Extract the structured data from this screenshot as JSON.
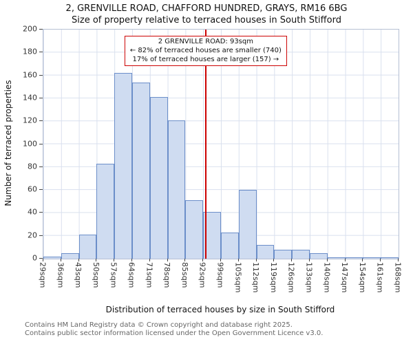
{
  "chart_data": {
    "type": "bar",
    "title": "2, GRENVILLE ROAD, CHAFFORD HUNDRED, GRAYS, RM16 6BG",
    "subtitle": "Size of property relative to terraced houses in South Stifford",
    "xlabel": "Distribution of terraced houses by size in South Stifford",
    "ylabel": "Number of terraced properties",
    "categories": [
      "29sqm",
      "36sqm",
      "43sqm",
      "50sqm",
      "57sqm",
      "64sqm",
      "71sqm",
      "78sqm",
      "85sqm",
      "92sqm",
      "99sqm",
      "105sqm",
      "112sqm",
      "119sqm",
      "126sqm",
      "133sqm",
      "140sqm",
      "147sqm",
      "154sqm",
      "161sqm",
      "168sqm"
    ],
    "values": [
      2,
      5,
      21,
      83,
      162,
      154,
      141,
      121,
      51,
      41,
      23,
      60,
      12,
      8,
      8,
      5,
      1,
      1,
      1,
      1
    ],
    "ylim": [
      0,
      200
    ],
    "yticks": [
      0,
      20,
      40,
      60,
      80,
      100,
      120,
      140,
      160,
      180,
      200
    ],
    "grid": "on",
    "bar_fill": "#cfdcf1",
    "bar_border": "#6b8ec9",
    "marker": {
      "value": 93,
      "label": "93sqm",
      "color": "#cc0000"
    },
    "annotation": {
      "line1": "2 GRENVILLE ROAD: 93sqm",
      "line2": "← 82% of terraced houses are smaller (740)",
      "line3": "17% of terraced houses are larger (157) →"
    }
  },
  "footer": {
    "line1": "Contains HM Land Registry data © Crown copyright and database right 2025.",
    "line2": "Contains public sector information licensed under the Open Government Licence v3.0."
  }
}
